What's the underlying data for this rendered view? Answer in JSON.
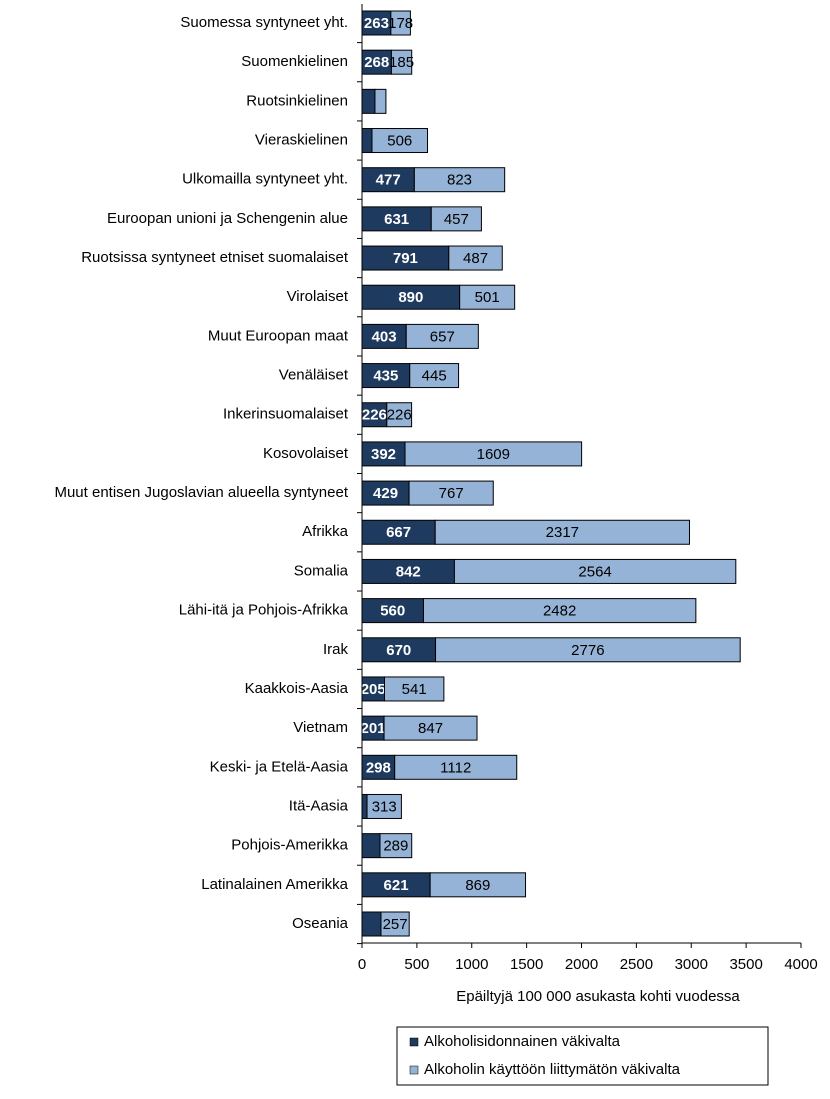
{
  "chart_data": {
    "type": "bar",
    "orientation": "horizontal",
    "stacked": true,
    "x_label": "Epäiltyjä  100 000  asukasta  kohti vuodessa",
    "categories": [
      "Suomessa syntyneet yht.",
      "Suomenkielinen",
      "Ruotsinkielinen",
      "Vieraskielinen",
      "Ulkomailla syntyneet yht.",
      "Euroopan unioni ja Schengenin alue",
      "Ruotsissa syntyneet etniset suomalaiset",
      "Virolaiset",
      "Muut Euroopan maat",
      "Venäläiset",
      "Inkerinsuomalaiset",
      "Kosovolaiset",
      "Muut entisen Jugoslavian alueella syntyneet",
      "Afrikka",
      "Somalia",
      "Lähi-itä ja Pohjois-Afrikka",
      "Irak",
      "Kaakkois-Aasia",
      "Vietnam",
      "Keski- ja Etelä-Aasia",
      "Itä-Aasia",
      "Pohjois-Amerikka",
      "Latinalainen Amerikka",
      "Oseania"
    ],
    "series": [
      {
        "name": "Alkoholisidonnainen väkivalta",
        "color": "#1f3a5f",
        "values": [
          263,
          268,
          118,
          91,
          477,
          631,
          791,
          890,
          403,
          435,
          226,
          392,
          429,
          667,
          842,
          560,
          670,
          205,
          201,
          298,
          46,
          164,
          621,
          173
        ],
        "value_labels": [
          "263",
          "268",
          null,
          null,
          "477",
          "631",
          "791",
          "890",
          "403",
          "435",
          "226",
          "392",
          "429",
          "667",
          "842",
          "560",
          "670",
          "205",
          "201",
          "298",
          null,
          null,
          "621",
          null
        ]
      },
      {
        "name": "Alkoholin käyttöön liittymätön väkivalta",
        "color": "#95b3d7",
        "values": [
          178,
          185,
          100,
          506,
          823,
          457,
          487,
          501,
          657,
          445,
          226,
          1609,
          767,
          2317,
          2564,
          2482,
          2776,
          541,
          847,
          1112,
          313,
          289,
          869,
          257
        ],
        "value_labels": [
          "178",
          "185",
          null,
          "506",
          "823",
          "457",
          "487",
          "501",
          "657",
          "445",
          "226",
          "1609",
          "767",
          "2317",
          "2564",
          "2482",
          "2776",
          "541",
          "847",
          "1112",
          "313",
          "289",
          "869",
          "257"
        ]
      }
    ],
    "xlim": [
      0,
      4000
    ],
    "xticks": [
      0,
      500,
      1000,
      1500,
      2000,
      2500,
      3000,
      3500,
      4000
    ],
    "grid": false,
    "legend": "bottom"
  }
}
